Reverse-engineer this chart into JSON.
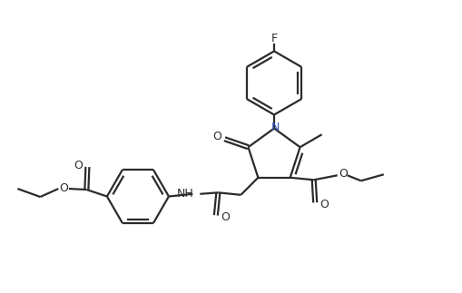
{
  "background_color": "#ffffff",
  "line_color": "#2b2b2b",
  "N_color": "#3355bb",
  "line_width": 1.6,
  "fig_width": 5.09,
  "fig_height": 3.23,
  "font_size": 9.0,
  "xlim": [
    0,
    10
  ],
  "ylim": [
    0,
    6.4
  ]
}
